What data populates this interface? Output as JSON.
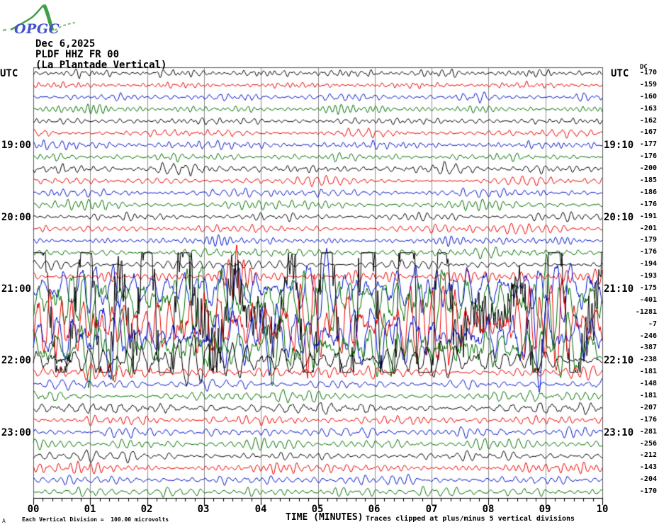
{
  "logo": {
    "text": "OPGC",
    "text_color": "#4253c6",
    "curve_color": "#3f9f49",
    "tail_color": "#7fbf7a"
  },
  "header": {
    "date": "Dec 6,2025",
    "channel": "PLDF HHZ FR 00",
    "station": "(La Plantade Vertical)"
  },
  "axis": {
    "left_title": "UTC",
    "right_title": "UTC",
    "dc_header": "DC",
    "x_label": "TIME (MINUTES)",
    "x_tick_labels": [
      "00",
      "01",
      "02",
      "03",
      "04",
      "05",
      "06",
      "07",
      "08",
      "09",
      "10"
    ]
  },
  "footer": {
    "left": "Each Vertical Division =  100.00 microvolts",
    "right": "Traces clipped at plus/minus 5 vertical divisions",
    "corner_mark": "A"
  },
  "colors": {
    "black": "#000000",
    "red": "#ee0000",
    "blue": "#0011cc",
    "green": "#007000",
    "grid": "#8f8f8f",
    "frame": "#5a5a5a",
    "axis": "#000000"
  },
  "chart_data": {
    "type": "line",
    "kind": "helicorder-seismogram",
    "title": "PLDF HHZ FR 00 (La Plantade Vertical) - Dec 6,2025",
    "minutes_per_line": 10,
    "x_range_minutes": [
      0,
      10
    ],
    "uv_per_division": 100,
    "clip_divisions": 5,
    "left_time_labels": [
      {
        "row": 7,
        "text": "19:00"
      },
      {
        "row": 13,
        "text": "20:00"
      },
      {
        "row": 19,
        "text": "21:00"
      },
      {
        "row": 25,
        "text": "22:00"
      },
      {
        "row": 31,
        "text": "23:00"
      }
    ],
    "right_time_labels": [
      {
        "row": 7,
        "text": "19:10"
      },
      {
        "row": 13,
        "text": "20:10"
      },
      {
        "row": 19,
        "text": "21:10"
      },
      {
        "row": 25,
        "text": "22:10"
      },
      {
        "row": 31,
        "text": "23:10"
      }
    ],
    "rows": [
      {
        "start": "18:00",
        "color": "black",
        "dc": -170,
        "amp": [
          6.5,
          6.5
        ],
        "wl": [
          7,
          18
        ]
      },
      {
        "start": "18:10",
        "color": "red",
        "dc": -159,
        "amp": [
          6,
          6
        ],
        "wl": [
          7,
          16
        ]
      },
      {
        "start": "18:20",
        "color": "blue",
        "dc": -160,
        "amp": [
          6.5,
          6.5
        ],
        "wl": [
          7,
          16
        ]
      },
      {
        "start": "18:30",
        "color": "green",
        "dc": -163,
        "amp": [
          7,
          7
        ],
        "wl": [
          7,
          16
        ]
      },
      {
        "start": "18:40",
        "color": "black",
        "dc": -162,
        "amp": [
          6,
          6
        ],
        "wl": [
          7,
          16
        ]
      },
      {
        "start": "18:50",
        "color": "red",
        "dc": -167,
        "amp": [
          6,
          6
        ],
        "wl": [
          7,
          16
        ]
      },
      {
        "start": "19:00",
        "color": "blue",
        "dc": -177,
        "amp": [
          7,
          7
        ],
        "wl": [
          7,
          16
        ]
      },
      {
        "start": "19:10",
        "color": "green",
        "dc": -176,
        "amp": [
          7,
          7
        ],
        "wl": [
          7,
          16
        ]
      },
      {
        "start": "19:20",
        "color": "black",
        "dc": -200,
        "amp": [
          9,
          8
        ],
        "wl": [
          8,
          18
        ]
      },
      {
        "start": "19:30",
        "color": "red",
        "dc": -185,
        "amp": [
          7,
          7
        ],
        "wl": [
          7,
          16
        ]
      },
      {
        "start": "19:40",
        "color": "blue",
        "dc": -186,
        "amp": [
          7,
          7
        ],
        "wl": [
          7,
          16
        ]
      },
      {
        "start": "19:50",
        "color": "green",
        "dc": -176,
        "amp": [
          7,
          7
        ],
        "wl": [
          7,
          16
        ]
      },
      {
        "start": "20:00",
        "color": "black",
        "dc": -191,
        "amp": [
          7,
          7
        ],
        "wl": [
          7,
          16
        ]
      },
      {
        "start": "20:10",
        "color": "red",
        "dc": -201,
        "amp": [
          8,
          8
        ],
        "wl": [
          7,
          16
        ]
      },
      {
        "start": "20:20",
        "color": "blue",
        "dc": -179,
        "amp": [
          7,
          7
        ],
        "wl": [
          7,
          16
        ]
      },
      {
        "start": "20:30",
        "color": "green",
        "dc": -176,
        "amp": [
          8,
          8
        ],
        "wl": [
          8,
          18
        ]
      },
      {
        "start": "20:40",
        "color": "black",
        "dc": -194,
        "amp": [
          8,
          8
        ],
        "wl": [
          8,
          18
        ]
      },
      {
        "start": "20:50",
        "color": "red",
        "dc": -193,
        "amp": [
          7,
          13
        ],
        "wl": [
          7,
          16
        ],
        "burst": [
          3.0,
          3.9,
          48
        ]
      },
      {
        "start": "21:00",
        "color": "blue",
        "dc": -175,
        "amp": [
          40,
          52
        ],
        "wl": [
          14,
          34
        ]
      },
      {
        "start": "21:10",
        "color": "green",
        "dc": -401,
        "amp": [
          60,
          62
        ],
        "wl": [
          16,
          36
        ]
      },
      {
        "start": "21:20",
        "color": "black",
        "dc": -1281,
        "amp": [
          300,
          300
        ],
        "wl": [
          26,
          80
        ]
      },
      {
        "start": "21:30",
        "color": "red",
        "dc": -7,
        "amp": [
          75,
          70
        ],
        "wl": [
          14,
          32
        ]
      },
      {
        "start": "21:40",
        "color": "blue",
        "dc": -246,
        "amp": [
          62,
          58
        ],
        "wl": [
          14,
          32
        ]
      },
      {
        "start": "21:50",
        "color": "green",
        "dc": -387,
        "amp": [
          55,
          50
        ],
        "wl": [
          16,
          34
        ]
      },
      {
        "start": "22:00",
        "color": "black",
        "dc": -238,
        "amp": [
          46,
          16
        ],
        "wl": [
          12,
          30
        ]
      },
      {
        "start": "22:10",
        "color": "red",
        "dc": -181,
        "amp": [
          13,
          9
        ],
        "wl": [
          9,
          22
        ]
      },
      {
        "start": "22:20",
        "color": "blue",
        "dc": -148,
        "amp": [
          9,
          8
        ],
        "wl": [
          9,
          20
        ]
      },
      {
        "start": "22:30",
        "color": "green",
        "dc": -181,
        "amp": [
          9,
          8
        ],
        "wl": [
          9,
          20
        ]
      },
      {
        "start": "22:40",
        "color": "black",
        "dc": -207,
        "amp": [
          10,
          9
        ],
        "wl": [
          9,
          20
        ]
      },
      {
        "start": "22:50",
        "color": "red",
        "dc": -176,
        "amp": [
          8,
          8
        ],
        "wl": [
          9,
          20
        ]
      },
      {
        "start": "23:00",
        "color": "blue",
        "dc": -281,
        "amp": [
          9,
          9
        ],
        "wl": [
          10,
          22
        ]
      },
      {
        "start": "23:10",
        "color": "green",
        "dc": -256,
        "amp": [
          9,
          9
        ],
        "wl": [
          10,
          22
        ]
      },
      {
        "start": "23:20",
        "color": "black",
        "dc": -212,
        "amp": [
          8,
          8
        ],
        "wl": [
          9,
          20
        ]
      },
      {
        "start": "23:30",
        "color": "red",
        "dc": -143,
        "amp": [
          8,
          8
        ],
        "wl": [
          9,
          20
        ]
      },
      {
        "start": "23:40",
        "color": "blue",
        "dc": -204,
        "amp": [
          8,
          8
        ],
        "wl": [
          9,
          20
        ]
      },
      {
        "start": "23:50",
        "color": "green",
        "dc": -170,
        "amp": [
          8,
          8
        ],
        "wl": [
          9,
          20
        ]
      }
    ]
  }
}
